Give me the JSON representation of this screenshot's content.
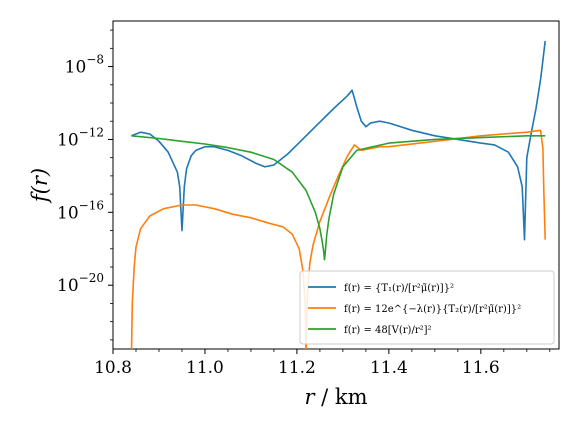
{
  "chart_data": {
    "type": "line",
    "xlabel_var": "r",
    "xlabel_unit": " / km",
    "ylabel": "f(r)",
    "x_scale": "linear",
    "y_scale": "log",
    "xlim": [
      10.8,
      11.77
    ],
    "ylim_log10": [
      -23.5,
      -5.5
    ],
    "xticks": [
      10.8,
      11.0,
      11.2,
      11.4,
      11.6
    ],
    "xtick_labels": [
      "10.8",
      "11.0",
      "11.2",
      "11.4",
      "11.6"
    ],
    "yticks_log10": [
      -8,
      -12,
      -16,
      -20
    ],
    "ytick_labels": [
      "10",
      "10",
      "10",
      "10"
    ],
    "ytick_exponents": [
      "−8",
      "−12",
      "−16",
      "−20"
    ],
    "grid": false,
    "legend_position": "lower-right",
    "series": [
      {
        "name": "f(r) = {T₁(r)/[r²μ̃(r)]}²",
        "color": "#1f77b4",
        "x": [
          10.84,
          10.86,
          10.88,
          10.9,
          10.92,
          10.94,
          10.945,
          10.95,
          10.955,
          10.96,
          10.97,
          10.98,
          11.0,
          11.02,
          11.05,
          11.08,
          11.11,
          11.13,
          11.15,
          11.18,
          11.2,
          11.24,
          11.28,
          11.31,
          11.32,
          11.33,
          11.34,
          11.35,
          11.36,
          11.38,
          11.4,
          11.45,
          11.5,
          11.55,
          11.6,
          11.63,
          11.66,
          11.68,
          11.69,
          11.695,
          11.7,
          11.71,
          11.72,
          11.73,
          11.74
        ],
        "y_log10": [
          -11.8,
          -11.6,
          -11.7,
          -12.1,
          -12.7,
          -13.8,
          -14.6,
          -17.0,
          -14.6,
          -13.6,
          -12.9,
          -12.6,
          -12.4,
          -12.4,
          -12.6,
          -12.9,
          -13.3,
          -13.5,
          -13.4,
          -12.8,
          -12.3,
          -11.3,
          -10.3,
          -9.6,
          -9.3,
          -10.2,
          -11.0,
          -11.3,
          -11.1,
          -11.0,
          -11.1,
          -11.5,
          -11.8,
          -12.0,
          -12.2,
          -12.3,
          -12.7,
          -13.5,
          -14.6,
          -17.5,
          -13.0,
          -11.6,
          -10.3,
          -8.7,
          -6.6
        ]
      },
      {
        "name": "f(r) = 12e^{−λ(r)}{T₂(r)/[r²μ̃(r)]}²",
        "color": "#ff7f0e",
        "x": [
          10.84,
          10.842,
          10.846,
          10.85,
          10.86,
          10.88,
          10.91,
          10.95,
          10.98,
          11.02,
          11.06,
          11.1,
          11.14,
          11.17,
          11.19,
          11.205,
          11.213,
          11.218,
          11.22,
          11.223,
          11.228,
          11.235,
          11.25,
          11.27,
          11.29,
          11.31,
          11.325,
          11.33,
          11.34,
          11.36,
          11.38,
          11.4,
          11.5,
          11.6,
          11.7,
          11.73,
          11.735,
          11.737,
          11.74
        ],
        "y_log10": [
          -24.0,
          -21.0,
          -19.0,
          -17.9,
          -16.9,
          -16.2,
          -15.8,
          -15.6,
          -15.6,
          -15.8,
          -16.1,
          -16.3,
          -16.6,
          -16.8,
          -17.2,
          -18.0,
          -19.2,
          -21.0,
          -23.9,
          -20.5,
          -18.8,
          -17.8,
          -16.5,
          -15.2,
          -14.0,
          -12.9,
          -12.3,
          -12.4,
          -12.6,
          -12.5,
          -12.4,
          -12.4,
          -12.1,
          -11.8,
          -11.6,
          -11.5,
          -12.5,
          -14.8,
          -17.5
        ]
      },
      {
        "name": "f(r) = 48[V(r)/r²]²",
        "color": "#2ca02c",
        "x": [
          10.84,
          10.9,
          10.95,
          11.0,
          11.05,
          11.1,
          11.15,
          11.19,
          11.22,
          11.24,
          11.25,
          11.255,
          11.258,
          11.26,
          11.262,
          11.265,
          11.27,
          11.28,
          11.3,
          11.33,
          11.4,
          11.5,
          11.6,
          11.7,
          11.74
        ],
        "y_log10": [
          -11.8,
          -11.95,
          -12.1,
          -12.25,
          -12.45,
          -12.7,
          -13.1,
          -13.8,
          -14.8,
          -16.0,
          -16.9,
          -17.6,
          -18.1,
          -18.6,
          -18.1,
          -17.2,
          -16.3,
          -15.0,
          -13.5,
          -12.6,
          -12.2,
          -12.0,
          -11.9,
          -11.8,
          -11.8
        ]
      }
    ]
  }
}
